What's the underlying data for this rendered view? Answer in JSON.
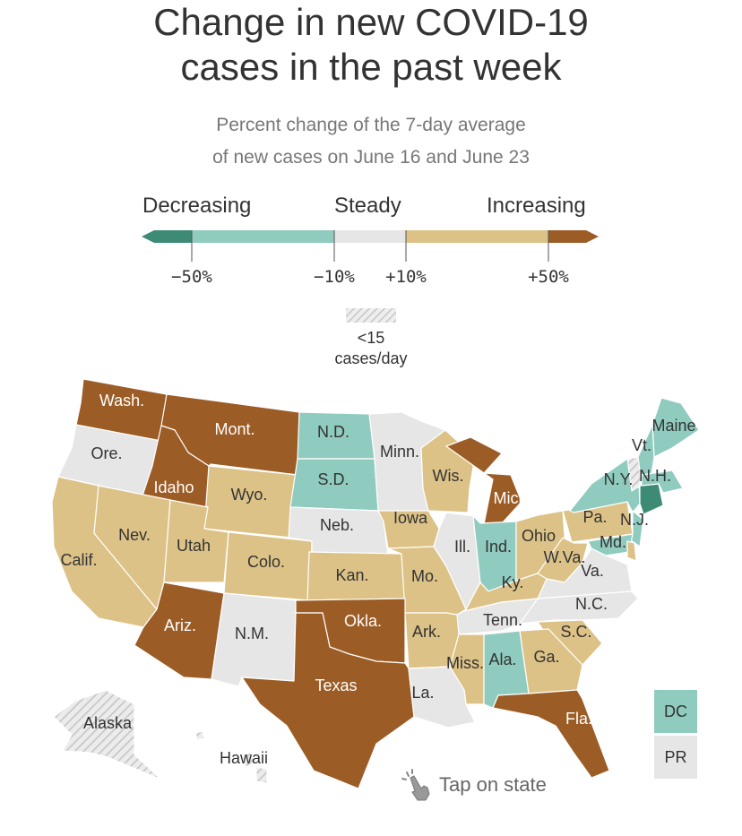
{
  "title": {
    "line1": "Change in new COVID-19",
    "line2": "cases in the past week"
  },
  "subtitle": {
    "line1": "Percent change of the 7-day average",
    "line2": "of new cases on June 16 and June 23"
  },
  "legend": {
    "decreasing": "Decreasing",
    "steady": "Steady",
    "increasing": "Increasing",
    "ticks": [
      "−50%",
      "−10%",
      "+10%",
      "+50%"
    ],
    "low_cases_line1": "<15",
    "low_cases_line2": "cases/day"
  },
  "colors": {
    "dark_teal": "#3d8a75",
    "light_teal": "#8fcbbf",
    "steady_gray": "#e6e6e6",
    "light_tan": "#dcc286",
    "dark_brown": "#9c5c26",
    "hatch": "#cfcfcf"
  },
  "map": {
    "states": {
      "wa": "Wash.",
      "mt": "Mont.",
      "or": "Ore.",
      "id": "Idaho",
      "wy": "Wyo.",
      "nd": "N.D.",
      "sd": "S.D.",
      "mn": "Minn.",
      "wi": "Wis.",
      "mi": "Mich.",
      "ca": "Calif.",
      "nv": "Nev.",
      "ut": "Utah",
      "co": "Colo.",
      "ne": "Neb.",
      "ia": "Iowa",
      "il": "Ill.",
      "in": "Ind.",
      "oh": "Ohio",
      "pa": "Pa.",
      "ny": "N.Y.",
      "nj": "N.J.",
      "md": "Md.",
      "wv": "W.Va.",
      "va": "Va.",
      "ky": "Ky.",
      "ks": "Kan.",
      "mo": "Mo.",
      "nc": "N.C.",
      "tn": "Tenn.",
      "az": "Ariz.",
      "nm": "N.M.",
      "ok": "Okla.",
      "ar": "Ark.",
      "sc": "S.C.",
      "ms": "Miss.",
      "al": "Ala.",
      "ga": "Ga.",
      "tx": "Texas",
      "la": "La.",
      "fl": "Fla.",
      "me": "Maine",
      "vt": "Vt.",
      "nh": "N.H.",
      "ak": "Alaska",
      "hi": "Hawaii"
    }
  },
  "territories": {
    "dc": "DC",
    "pr": "PR"
  },
  "tap_prompt": "Tap on state"
}
